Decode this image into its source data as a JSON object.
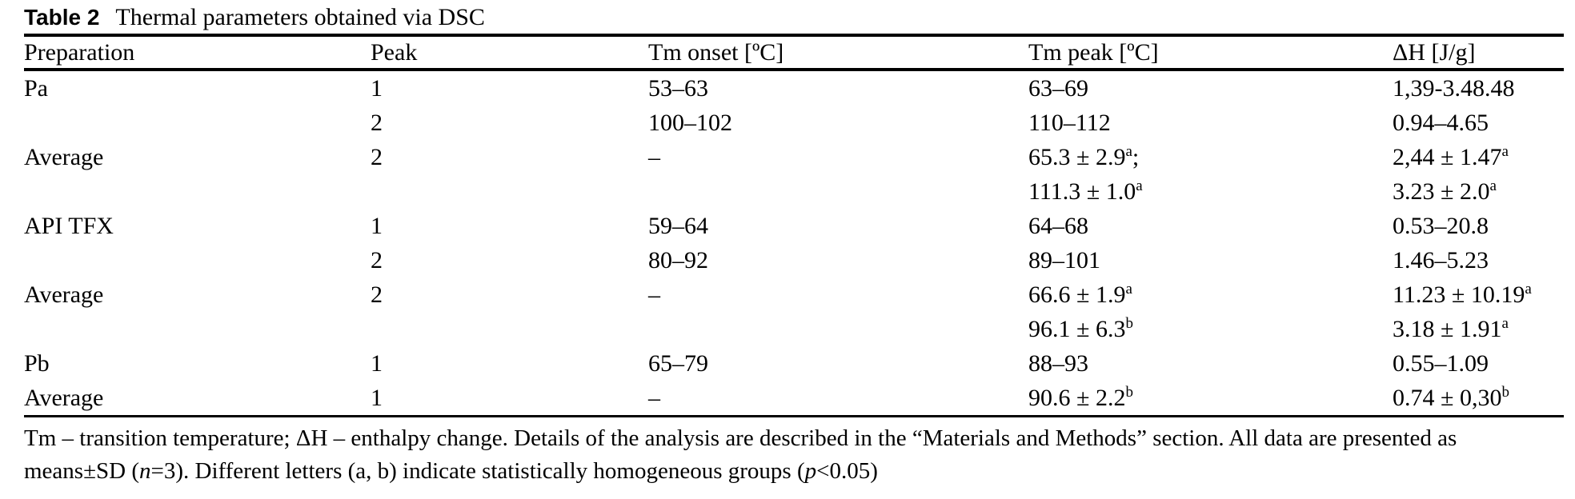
{
  "title": {
    "label": "Table 2",
    "caption": "Thermal parameters obtained via DSC"
  },
  "table": {
    "columns": [
      "Preparation",
      "Peak",
      "Tm onset [ºC]",
      "Tm peak [ºC]",
      "ΔH [J/g]"
    ],
    "rows": [
      {
        "cells": [
          [
            [
              {
                "t": "Pa"
              }
            ]
          ],
          [
            [
              {
                "t": "1"
              }
            ]
          ],
          [
            [
              {
                "t": "53–63"
              }
            ]
          ],
          [
            [
              {
                "t": "63–69"
              }
            ]
          ],
          [
            [
              {
                "t": "1,39-3.48.48"
              }
            ]
          ]
        ]
      },
      {
        "cells": [
          [],
          [
            [
              {
                "t": "2"
              }
            ]
          ],
          [
            [
              {
                "t": "100–102"
              }
            ]
          ],
          [
            [
              {
                "t": "110–112"
              }
            ]
          ],
          [
            [
              {
                "t": "0.94–4.65"
              }
            ]
          ]
        ]
      },
      {
        "cells": [
          [
            [
              {
                "t": "Average"
              }
            ]
          ],
          [
            [
              {
                "t": "2"
              }
            ]
          ],
          [
            [
              {
                "t": "–"
              }
            ]
          ],
          [
            [
              {
                "t": "65.3 ± 2.9"
              },
              {
                "s": "a"
              },
              {
                "t": ";"
              }
            ],
            [
              {
                "t": "111.3 ± 1.0"
              },
              {
                "s": "a"
              }
            ]
          ],
          [
            [
              {
                "t": "2,44 ± 1.47"
              },
              {
                "s": "a"
              }
            ],
            [
              {
                "t": "3.23 ± 2.0"
              },
              {
                "s": "a"
              }
            ]
          ]
        ]
      },
      {
        "cells": [
          [
            [
              {
                "t": "API TFX"
              }
            ]
          ],
          [
            [
              {
                "t": "1"
              }
            ]
          ],
          [
            [
              {
                "t": "59–64"
              }
            ]
          ],
          [
            [
              {
                "t": "64–68"
              }
            ]
          ],
          [
            [
              {
                "t": "0.53–20.8"
              }
            ]
          ]
        ]
      },
      {
        "cells": [
          [],
          [
            [
              {
                "t": "2"
              }
            ]
          ],
          [
            [
              {
                "t": "80–92"
              }
            ]
          ],
          [
            [
              {
                "t": "89–101"
              }
            ]
          ],
          [
            [
              {
                "t": "1.46–5.23"
              }
            ]
          ]
        ]
      },
      {
        "cells": [
          [
            [
              {
                "t": "Average"
              }
            ]
          ],
          [
            [
              {
                "t": "2"
              }
            ]
          ],
          [
            [
              {
                "t": "–"
              }
            ]
          ],
          [
            [
              {
                "t": "66.6 ± 1.9"
              },
              {
                "s": "a"
              }
            ],
            [
              {
                "t": "96.1 ± 6.3"
              },
              {
                "s": "b"
              }
            ]
          ],
          [
            [
              {
                "t": "11.23 ± 10.19"
              },
              {
                "s": "a"
              }
            ],
            [
              {
                "t": "3.18 ± 1.91"
              },
              {
                "s": "a"
              }
            ]
          ]
        ]
      },
      {
        "cells": [
          [
            [
              {
                "t": "Pb"
              }
            ]
          ],
          [
            [
              {
                "t": "1"
              }
            ]
          ],
          [
            [
              {
                "t": "65–79"
              }
            ]
          ],
          [
            [
              {
                "t": "88–93"
              }
            ]
          ],
          [
            [
              {
                "t": "0.55–1.09"
              }
            ]
          ]
        ]
      },
      {
        "cells": [
          [
            [
              {
                "t": "Average"
              }
            ]
          ],
          [
            [
              {
                "t": "1"
              }
            ]
          ],
          [
            [
              {
                "t": "–"
              }
            ]
          ],
          [
            [
              {
                "t": "90.6 ± 2.2"
              },
              {
                "s": "b"
              }
            ]
          ],
          [
            [
              {
                "t": "0.74 ± 0,30"
              },
              {
                "s": "b"
              }
            ]
          ]
        ]
      }
    ]
  },
  "footnote": {
    "segments": [
      {
        "t": "Tm – transition temperature; ΔH – enthalpy change. Details of the analysis are described in the “Materials and Methods” section. All data are presented as means±SD ("
      },
      {
        "i": "n"
      },
      {
        "t": "=3). Different letters (a, b) indicate statistically homogeneous groups ("
      },
      {
        "i": "p"
      },
      {
        "t": "<0.05)"
      }
    ]
  }
}
